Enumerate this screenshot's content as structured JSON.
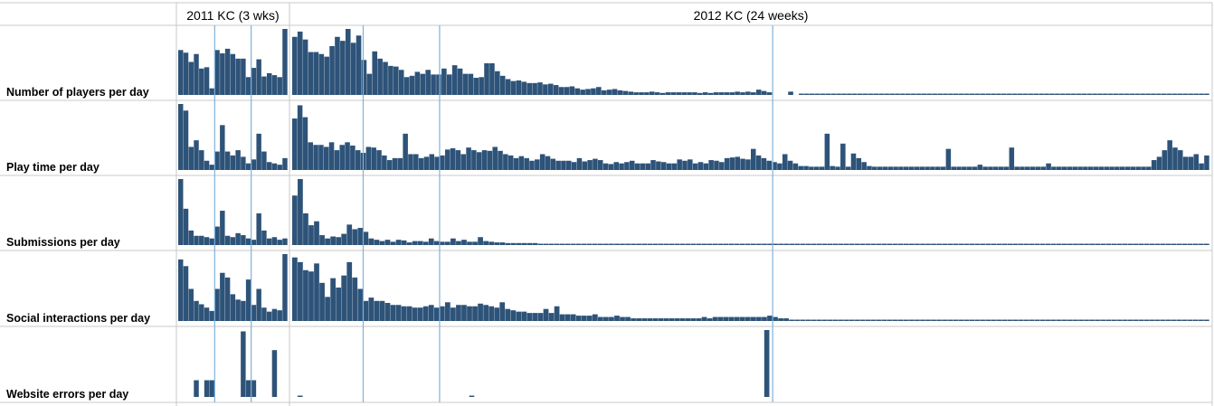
{
  "header": {
    "col_2011": "2011 KC (3 wks)",
    "col_2012": "2012 KC (24 weeks)"
  },
  "colors": {
    "bar": "#2e5379",
    "marker_line": "#7fb2d9",
    "grid": "#c9c9c9"
  },
  "chart_data": {
    "type": "bar",
    "layout": "small-multiples",
    "grid": true,
    "ylim": [
      0,
      1
    ],
    "y_axis_shown": false,
    "groups": [
      {
        "name": "2011 KC (3 wks)",
        "days": 21,
        "event_markers_day": [
          7,
          14
        ]
      },
      {
        "name": "2012 KC (24 weeks)",
        "days": 168,
        "event_markers_day": [
          13,
          27,
          88
        ]
      }
    ],
    "rows": [
      {
        "label": "Number of players per day",
        "g2011": [
          0.68,
          0.64,
          0.5,
          0.62,
          0.4,
          0.42,
          0.1,
          0.68,
          0.63,
          0.7,
          0.62,
          0.55,
          0.55,
          0.27,
          0.41,
          0.54,
          0.28,
          0.33,
          0.3,
          0.27,
          1.0
        ],
        "g2012": [
          0.88,
          0.96,
          0.84,
          0.65,
          0.65,
          0.62,
          0.58,
          0.74,
          0.88,
          0.82,
          1.0,
          0.79,
          0.9,
          0.53,
          0.32,
          0.66,
          0.55,
          0.5,
          0.44,
          0.43,
          0.38,
          0.27,
          0.29,
          0.35,
          0.32,
          0.38,
          0.31,
          0.31,
          0.4,
          0.31,
          0.45,
          0.4,
          0.32,
          0.32,
          0.26,
          0.27,
          0.48,
          0.48,
          0.36,
          0.29,
          0.24,
          0.21,
          0.22,
          0.2,
          0.18,
          0.18,
          0.19,
          0.16,
          0.17,
          0.15,
          0.12,
          0.12,
          0.13,
          0.1,
          0.08,
          0.09,
          0.1,
          0.12,
          0.07,
          0.08,
          0.09,
          0.07,
          0.06,
          0.05,
          0.04,
          0.04,
          0.04,
          0.05,
          0.04,
          0.03,
          0.04,
          0.04,
          0.04,
          0.04,
          0.04,
          0.04,
          0.03,
          0.04,
          0.03,
          0.04,
          0.04,
          0.04,
          0.04,
          0.05,
          0.04,
          0.05,
          0.04,
          0.08,
          0.06,
          0.04,
          0,
          0,
          0,
          0.05,
          0,
          0.02,
          0.02,
          0.02,
          0.02,
          0.02,
          0.02,
          0.02,
          0.02,
          0.02,
          0.02,
          0.02,
          0.02,
          0.02,
          0.02,
          0.02,
          0.02,
          0.02,
          0.02,
          0.02,
          0.02,
          0.02,
          0.02,
          0.02,
          0.02,
          0.02,
          0.02,
          0.02,
          0.02,
          0.02,
          0.02,
          0.02,
          0.02,
          0.02,
          0.02,
          0.02,
          0.02,
          0.02,
          0.02,
          0.02,
          0.02,
          0.02,
          0.02,
          0.02,
          0.02,
          0.02,
          0.02,
          0.02,
          0.02,
          0.02,
          0.02,
          0.02,
          0.02,
          0.02,
          0.02,
          0.02,
          0.02,
          0.02,
          0.02,
          0.02,
          0.02,
          0.02,
          0.02,
          0.02,
          0.02,
          0.02,
          0.02,
          0.02,
          0.02,
          0.02,
          0.02,
          0.02,
          0.02,
          0.02,
          0.02,
          0.02,
          0.02,
          0.02
        ]
      },
      {
        "label": "Play time per day",
        "g2011": [
          1.0,
          0.9,
          0.35,
          0.45,
          0.3,
          0.14,
          0.08,
          0.28,
          0.68,
          0.28,
          0.22,
          0.3,
          0.2,
          0.1,
          0.16,
          0.55,
          0.28,
          0.12,
          0.1,
          0.08,
          0.18
        ],
        "g2012": [
          0.78,
          0.98,
          0.8,
          0.42,
          0.38,
          0.38,
          0.35,
          0.42,
          0.3,
          0.38,
          0.42,
          0.37,
          0.3,
          0.26,
          0.35,
          0.34,
          0.3,
          0.22,
          0.15,
          0.18,
          0.18,
          0.55,
          0.24,
          0.24,
          0.18,
          0.2,
          0.24,
          0.2,
          0.22,
          0.31,
          0.33,
          0.3,
          0.24,
          0.34,
          0.3,
          0.27,
          0.3,
          0.29,
          0.35,
          0.29,
          0.24,
          0.22,
          0.18,
          0.21,
          0.18,
          0.14,
          0.16,
          0.24,
          0.21,
          0.17,
          0.14,
          0.14,
          0.14,
          0.12,
          0.18,
          0.13,
          0.15,
          0.17,
          0.15,
          0.1,
          0.09,
          0.12,
          0.1,
          0.12,
          0.14,
          0.1,
          0.1,
          0.1,
          0.15,
          0.13,
          0.12,
          0.1,
          0.1,
          0.16,
          0.14,
          0.16,
          0.1,
          0.12,
          0.1,
          0.15,
          0.14,
          0.12,
          0.18,
          0.19,
          0.2,
          0.17,
          0.16,
          0.32,
          0.22,
          0.18,
          0.14,
          0.12,
          0.1,
          0.24,
          0.14,
          0.1,
          0.06,
          0.06,
          0.05,
          0.05,
          0.05,
          0.55,
          0.06,
          0.05,
          0.4,
          0.05,
          0.25,
          0.18,
          0.12,
          0.06,
          0.05,
          0.05,
          0.05,
          0.05,
          0.05,
          0.05,
          0.05,
          0.05,
          0.05,
          0.05,
          0.05,
          0.05,
          0.05,
          0.05,
          0.32,
          0.05,
          0.05,
          0.05,
          0.05,
          0.05,
          0.08,
          0.05,
          0.05,
          0.05,
          0.05,
          0.05,
          0.34,
          0.05,
          0.05,
          0.05,
          0.05,
          0.05,
          0.05,
          0.1,
          0.05,
          0.05,
          0.05,
          0.05,
          0.05,
          0.05,
          0.05,
          0.05,
          0.05,
          0.05,
          0.05,
          0.05,
          0.05,
          0.05,
          0.05,
          0.05,
          0.05,
          0.05,
          0.05,
          0.15,
          0.2,
          0.3,
          0.45,
          0.34,
          0.3,
          0.2,
          0.2,
          0.24,
          0.1,
          0.22
        ]
      },
      {
        "label": "Submissions per day",
        "g2011": [
          1.0,
          0.55,
          0.22,
          0.14,
          0.14,
          0.12,
          0.1,
          0.28,
          0.52,
          0.14,
          0.12,
          0.18,
          0.15,
          0.1,
          0.08,
          0.48,
          0.22,
          0.1,
          0.12,
          0.08,
          0.1
        ],
        "g2012": [
          0.75,
          1.0,
          0.48,
          0.3,
          0.36,
          0.15,
          0.1,
          0.13,
          0.12,
          0.17,
          0.31,
          0.24,
          0.26,
          0.2,
          0.1,
          0.08,
          0.06,
          0.08,
          0.05,
          0.08,
          0.07,
          0.04,
          0.06,
          0.06,
          0.05,
          0.1,
          0.06,
          0.05,
          0.05,
          0.1,
          0.06,
          0.08,
          0.05,
          0.05,
          0.12,
          0.06,
          0.05,
          0.04,
          0.04,
          0.03,
          0.03,
          0.03,
          0.03,
          0.03,
          0.03,
          0.02,
          0.02,
          0.02,
          0.02,
          0.02,
          0.02,
          0.02,
          0.02,
          0.02,
          0.02,
          0.02,
          0.02,
          0.02,
          0.02,
          0.02,
          0.02,
          0.02,
          0.02,
          0.02,
          0.02,
          0.02,
          0.02,
          0.02,
          0.02,
          0.02,
          0.02,
          0.02,
          0.02,
          0.02,
          0.02,
          0.02,
          0.02,
          0.02,
          0.02,
          0.02,
          0.02,
          0.02,
          0.02,
          0.02,
          0.02,
          0.02,
          0.02,
          0.02,
          0.02,
          0.02,
          0.02,
          0.02,
          0.02,
          0.02,
          0.02,
          0.02,
          0.02,
          0.02,
          0.02,
          0.02,
          0.02,
          0.02,
          0.02,
          0.02,
          0.02,
          0.02,
          0.02,
          0.02,
          0.02,
          0.02,
          0.02,
          0.02,
          0.02,
          0.02,
          0.02,
          0.02,
          0.02,
          0.02,
          0.02,
          0.02,
          0.02,
          0.02,
          0.02,
          0.02,
          0.02,
          0.02,
          0.02,
          0.02,
          0.02,
          0.02,
          0.02,
          0.02,
          0.02,
          0.02,
          0.02,
          0.02,
          0.02,
          0.02,
          0.02,
          0.02,
          0.02,
          0.02,
          0.02,
          0.02,
          0.02,
          0.02,
          0.02,
          0.02,
          0.02,
          0.02,
          0.02,
          0.02,
          0.02,
          0.02,
          0.02,
          0.02,
          0.02,
          0.02,
          0.02,
          0.02,
          0.02,
          0.02,
          0.02,
          0.02,
          0.02,
          0.02,
          0.02,
          0.02
        ]
      },
      {
        "label": "Social interactions per day",
        "g2011": [
          0.92,
          0.82,
          0.48,
          0.3,
          0.25,
          0.2,
          0.15,
          0.48,
          0.72,
          0.65,
          0.4,
          0.32,
          0.3,
          0.62,
          0.24,
          0.48,
          0.2,
          0.14,
          0.18,
          0.16,
          1.0
        ],
        "g2012": [
          0.95,
          0.88,
          0.76,
          0.74,
          0.86,
          0.57,
          0.36,
          0.64,
          0.5,
          0.68,
          0.88,
          0.65,
          0.48,
          0.3,
          0.35,
          0.3,
          0.3,
          0.27,
          0.24,
          0.24,
          0.22,
          0.22,
          0.2,
          0.2,
          0.22,
          0.24,
          0.2,
          0.22,
          0.28,
          0.2,
          0.24,
          0.24,
          0.22,
          0.22,
          0.26,
          0.24,
          0.22,
          0.2,
          0.28,
          0.18,
          0.16,
          0.14,
          0.14,
          0.12,
          0.12,
          0.12,
          0.18,
          0.12,
          0.22,
          0.1,
          0.1,
          0.1,
          0.08,
          0.08,
          0.08,
          0.1,
          0.06,
          0.06,
          0.06,
          0.08,
          0.06,
          0.06,
          0.04,
          0.04,
          0.04,
          0.04,
          0.04,
          0.04,
          0.04,
          0.04,
          0.04,
          0.04,
          0.04,
          0.04,
          0.04,
          0.06,
          0.04,
          0.06,
          0.06,
          0.06,
          0.06,
          0.06,
          0.06,
          0.06,
          0.06,
          0.06,
          0.06,
          0.08,
          0.06,
          0.04,
          0.04,
          0.02,
          0.02,
          0.02,
          0.02,
          0.02,
          0.02,
          0.02,
          0.02,
          0.02,
          0.02,
          0.02,
          0.02,
          0.02,
          0.02,
          0.02,
          0.02,
          0.02,
          0.02,
          0.02,
          0.02,
          0.02,
          0.02,
          0.02,
          0.02,
          0.02,
          0.02,
          0.02,
          0.02,
          0.02,
          0.02,
          0.02,
          0.02,
          0.02,
          0.02,
          0.02,
          0.02,
          0.02,
          0.02,
          0.02,
          0.02,
          0.02,
          0.02,
          0.02,
          0.02,
          0.02,
          0.02,
          0.02,
          0.02,
          0.02,
          0.02,
          0.02,
          0.02,
          0.02,
          0.02,
          0.02,
          0.02,
          0.02,
          0.02,
          0.02,
          0.02,
          0.02,
          0.02,
          0.02,
          0.02,
          0.02,
          0.02,
          0.02,
          0.02,
          0.02,
          0.02,
          0.02,
          0.02,
          0.02,
          0.02,
          0.02,
          0.02,
          0.02
        ]
      },
      {
        "label": "Website errors per day",
        "g2011": [
          0,
          0,
          0,
          0.25,
          0,
          0.25,
          0.25,
          0,
          0,
          0,
          0,
          0,
          0.98,
          0.25,
          0.25,
          0,
          0,
          0,
          0.7,
          0,
          0
        ],
        "g2012": [
          0,
          0.02,
          0,
          0,
          0,
          0,
          0,
          0,
          0,
          0,
          0,
          0,
          0,
          0,
          0,
          0,
          0,
          0,
          0,
          0,
          0,
          0,
          0,
          0,
          0,
          0,
          0,
          0,
          0,
          0,
          0,
          0,
          0,
          0.02,
          0,
          0,
          0,
          0,
          0,
          0,
          0,
          0,
          0,
          0,
          0,
          0,
          0,
          0,
          0,
          0,
          0,
          0,
          0,
          0,
          0,
          0,
          0,
          0,
          0,
          0,
          0,
          0,
          0,
          0,
          0,
          0,
          0,
          0,
          0,
          0,
          0,
          0,
          0,
          0,
          0,
          0,
          0,
          0,
          0,
          0,
          0,
          0,
          0,
          0,
          0,
          0,
          0,
          0,
          1.0,
          0,
          0,
          0,
          0,
          0,
          0,
          0,
          0,
          0,
          0,
          0,
          0,
          0,
          0,
          0,
          0,
          0,
          0,
          0,
          0,
          0,
          0,
          0,
          0,
          0,
          0,
          0,
          0,
          0,
          0,
          0,
          0,
          0,
          0,
          0,
          0,
          0,
          0,
          0,
          0,
          0,
          0,
          0,
          0,
          0,
          0,
          0,
          0,
          0,
          0,
          0,
          0,
          0,
          0,
          0,
          0,
          0,
          0,
          0,
          0,
          0,
          0,
          0,
          0,
          0,
          0,
          0,
          0,
          0,
          0,
          0,
          0,
          0,
          0,
          0,
          0,
          0,
          0,
          0,
          0,
          0,
          0
        ]
      }
    ]
  }
}
